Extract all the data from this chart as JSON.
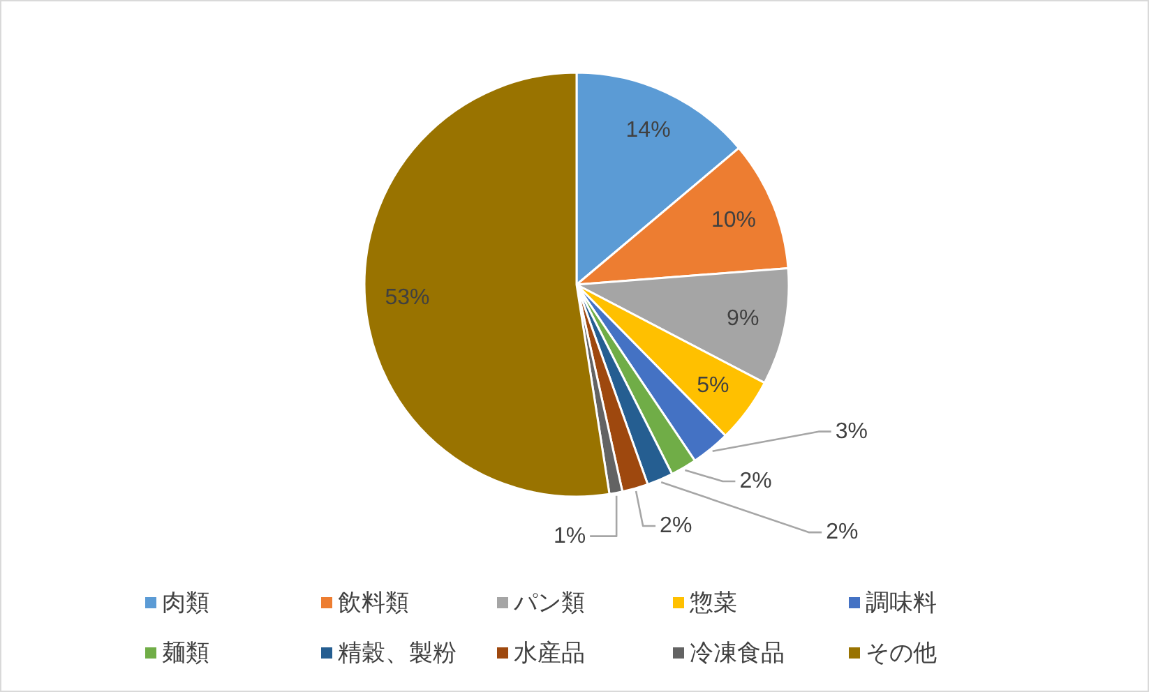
{
  "chart_data": {
    "type": "pie",
    "categories": [
      "肉類",
      "飲料類",
      "パン類",
      "惣菜",
      "調味料",
      "麺類",
      "精穀、製粉",
      "水産品",
      "冷凍食品",
      "その他"
    ],
    "values": [
      14,
      10,
      9,
      5,
      3,
      2,
      2,
      2,
      1,
      53
    ],
    "value_labels": [
      "14%",
      "10%",
      "9%",
      "5%",
      "3%",
      "2%",
      "2%",
      "2%",
      "1%",
      "53%"
    ],
    "colors": [
      "#5b9bd5",
      "#ed7d31",
      "#a5a5a5",
      "#ffc000",
      "#4472c4",
      "#70ad47",
      "#255e91",
      "#9e480e",
      "#636363",
      "#997300"
    ],
    "legend": "bottom"
  }
}
